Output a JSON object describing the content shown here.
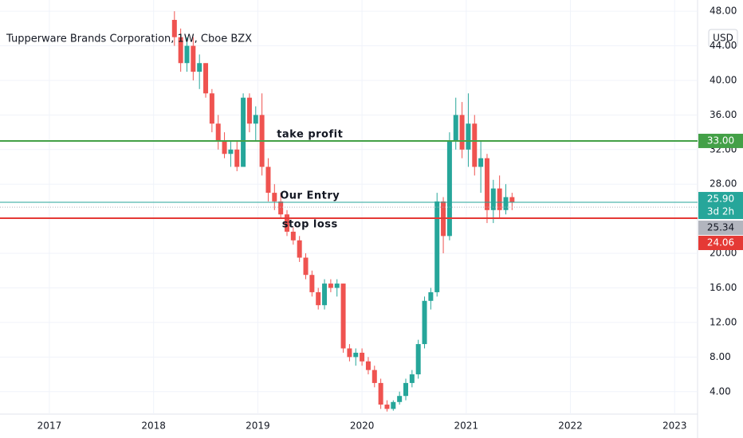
{
  "chart_data": {
    "type": "candlestick",
    "title": "Tupperware Brands Corporation, 1W, Cboe BZX",
    "currency": "USD",
    "x": [
      2018.2,
      2018.26,
      2018.32,
      2018.38,
      2018.44,
      2018.5,
      2018.56,
      2018.62,
      2018.68,
      2018.74,
      2018.8,
      2018.86,
      2018.92,
      2018.98,
      2019.04,
      2019.1,
      2019.16,
      2019.22,
      2019.28,
      2019.34,
      2019.4,
      2019.46,
      2019.52,
      2019.58,
      2019.64,
      2019.7,
      2019.76,
      2019.82,
      2019.88,
      2019.94,
      2020.0,
      2020.06,
      2020.12,
      2020.18,
      2020.24,
      2020.3,
      2020.36,
      2020.42,
      2020.48,
      2020.54,
      2020.6,
      2020.66,
      2020.72,
      2020.78,
      2020.84,
      2020.9,
      2020.96,
      2021.02,
      2021.08,
      2021.14,
      2021.2,
      2021.26,
      2021.32,
      2021.38,
      2021.44
    ],
    "open": [
      47,
      45,
      42,
      44,
      41,
      42,
      38.5,
      35,
      33,
      31.5,
      32,
      30,
      38,
      35,
      36,
      30,
      27,
      26,
      24.5,
      22.5,
      21.5,
      19.5,
      17.5,
      15.5,
      14,
      16.5,
      16,
      16.5,
      9,
      8,
      8.5,
      7.5,
      6.5,
      5,
      2.5,
      2,
      2.8,
      3.5,
      5,
      6,
      9.5,
      14.5,
      15.5,
      26,
      22,
      33,
      36,
      32,
      35,
      30,
      31,
      25,
      27.5,
      25,
      26.5
    ],
    "high": [
      48,
      46,
      45,
      45,
      43,
      42,
      39,
      36,
      34,
      33,
      33,
      38.5,
      38.5,
      37,
      38.5,
      31,
      28,
      27,
      25,
      23,
      22,
      20,
      18,
      16,
      17,
      17,
      17,
      16.5,
      9.5,
      9,
      9,
      8,
      7,
      5.5,
      3,
      3,
      4,
      5.5,
      6.5,
      10,
      15,
      16,
      27,
      26.5,
      34,
      38,
      37.5,
      38.5,
      36,
      33,
      31.5,
      28.5,
      29,
      28,
      27
    ],
    "low": [
      44,
      41,
      41,
      40,
      39,
      38,
      34,
      32,
      31,
      30,
      29.5,
      30,
      34,
      33,
      29,
      26,
      25,
      24,
      22,
      21,
      19,
      17,
      15,
      13.5,
      13.5,
      15.5,
      15,
      8.5,
      7.5,
      7,
      7,
      6,
      4.5,
      2,
      1.7,
      1.8,
      2.5,
      3,
      4.5,
      5.5,
      9,
      13.5,
      15,
      20,
      21.5,
      32,
      31,
      30,
      29,
      27,
      23.5,
      23.5,
      24,
      24.5,
      25
    ],
    "close": [
      45,
      42,
      44,
      41,
      42,
      38.5,
      35,
      33,
      31.5,
      32,
      30,
      38,
      35,
      36,
      30,
      27,
      26,
      24.5,
      22.5,
      21.5,
      19.5,
      17.5,
      15.5,
      14,
      16.5,
      16,
      16.5,
      9,
      8,
      8.5,
      7.5,
      6.5,
      5,
      2.5,
      2,
      2.8,
      3.5,
      5,
      6,
      9.5,
      14.5,
      15.5,
      26,
      22,
      33,
      36,
      32,
      35,
      30,
      31,
      25,
      27.5,
      25,
      26.5,
      25.9
    ],
    "up_color": "#26a69a",
    "down_color": "#ef5350",
    "xlim": [
      2016.526,
      2023.22
    ],
    "xticks": [
      2017,
      2018,
      2019,
      2020,
      2021,
      2022,
      2023
    ],
    "ylim": [
      1.4,
      49.3
    ],
    "yticks": [
      {
        "value": 4,
        "label": "4.00"
      },
      {
        "value": 8,
        "label": "8.00"
      },
      {
        "value": 12,
        "label": "12.00"
      },
      {
        "value": 16,
        "label": "16.00"
      },
      {
        "value": 20,
        "label": "20.00"
      },
      {
        "value": 28,
        "label": "28.00"
      },
      {
        "value": 32,
        "label": "32.00"
      },
      {
        "value": 36,
        "label": "36.00"
      },
      {
        "value": 40,
        "label": "40.00"
      },
      {
        "value": 44,
        "label": "44.00"
      },
      {
        "value": 48,
        "label": "48.00"
      }
    ],
    "price_lines": [
      {
        "name": "take profit",
        "value": 33,
        "label": "33.00",
        "color": "#43a047"
      },
      {
        "name": "Our Entry",
        "value": 25.9,
        "label": "25.90",
        "color": "#26a69a",
        "countdown": "3d 2h"
      },
      {
        "name": "stop loss",
        "value": 24.06,
        "label": "24.06",
        "color": "#e53935"
      }
    ],
    "prev_close": {
      "value": 25.34,
      "label": "25.34",
      "color": "#b2b5be"
    }
  }
}
